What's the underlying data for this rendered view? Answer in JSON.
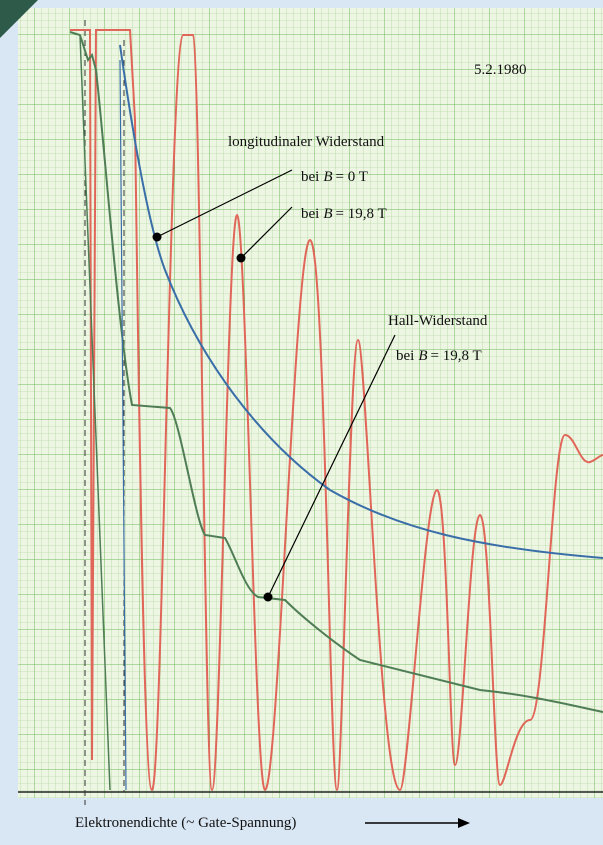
{
  "date": "5.2.1980",
  "longitudinal": {
    "title": "longitudinaler Widerstand",
    "b0": {
      "prefix": "bei",
      "symbol": "B",
      "value": "= 0 T"
    },
    "b198": {
      "prefix": "bei",
      "symbol": "B",
      "value": "= 19,8 T"
    }
  },
  "hall": {
    "title": "Hall-Widerstand",
    "b198": {
      "prefix": "bei",
      "symbol": "B",
      "value": "= 19,8 T"
    }
  },
  "x_label": "Elektronendichte (~ Gate-Spannung)"
}
